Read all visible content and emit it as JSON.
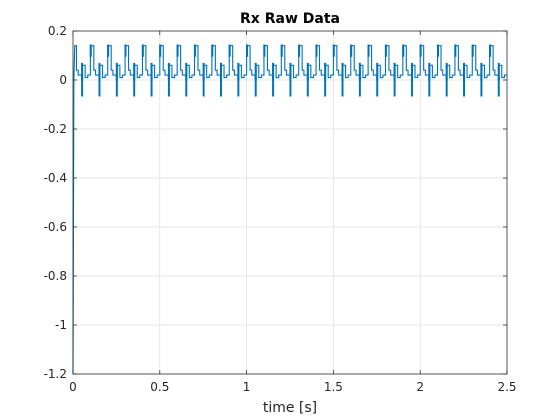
{
  "chart_data": {
    "type": "line",
    "title": "Rx Raw Data",
    "xlabel": "time [s]",
    "ylabel": "",
    "xlim": [
      0,
      2.5
    ],
    "ylim": [
      -1.2,
      0.2
    ],
    "x_ticks": [
      0,
      0.5,
      1,
      1.5,
      2,
      2.5
    ],
    "x_tick_labels": [
      "0",
      "0.5",
      "1",
      "1.5",
      "2",
      "2.5"
    ],
    "y_ticks": [
      0.2,
      0,
      -0.2,
      -0.4,
      -0.6,
      -0.8,
      -1,
      -1.2
    ],
    "y_tick_labels": [
      "0.2",
      "0",
      "-0.2",
      "-0.4",
      "-0.6",
      "-0.8",
      "-1",
      "-1.2"
    ],
    "grid": true,
    "series": [
      {
        "color": "#0072bd",
        "initial_transient": {
          "x": [
            0,
            0.005,
            0.01
          ],
          "y": [
            -1.2,
            0.0,
            0.14
          ]
        },
        "periodic_pattern": {
          "period": 0.1,
          "phases": [
            0.0,
            0.02,
            0.03,
            0.05,
            0.055,
            0.07,
            0.085
          ],
          "levels": [
            0.14,
            0.04,
            0.02,
            -0.065,
            0.06,
            0.01,
            0.02
          ]
        },
        "x_range": [
          0,
          2.5
        ]
      }
    ]
  }
}
